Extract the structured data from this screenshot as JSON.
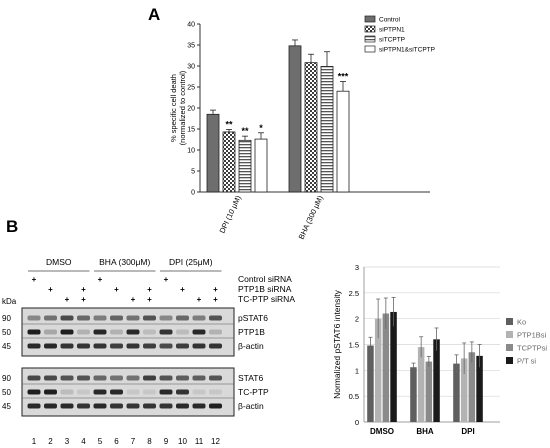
{
  "panels": {
    "a": "A",
    "b": "B"
  },
  "patterns": {
    "solid": "#6e6e6e",
    "check": "#3c3c3c",
    "hstripe": "#555555"
  },
  "chart_data": [
    {
      "type": "bar",
      "ylabel": "% specific cell death\n(normalized to control)",
      "ylabel_lines": [
        "% specific cell death",
        "(normalized to control)"
      ],
      "ylim": [
        0,
        40
      ],
      "yticks": [
        "0",
        "5",
        "10",
        "15",
        "20",
        "25",
        "30",
        "35",
        "40"
      ],
      "categories": [
        "DPI (10 μM)",
        "BHA (300 μM)"
      ],
      "legend_position": "top-right",
      "series": [
        {
          "name": "Control",
          "pattern": "solid",
          "values": [
            18.5,
            34.8
          ],
          "errors": [
            1.0,
            1.4
          ],
          "sig": [
            "",
            ""
          ]
        },
        {
          "name": "siPTPN1",
          "pattern": "check",
          "values": [
            14.3,
            30.8
          ],
          "errors": [
            0.6,
            2.0
          ],
          "sig": [
            "**",
            ""
          ]
        },
        {
          "name": "siTCPTP",
          "pattern": "hstripe",
          "values": [
            12.3,
            29.9
          ],
          "errors": [
            1.0,
            3.5
          ],
          "sig": [
            "**",
            ""
          ]
        },
        {
          "name": "siPTPN1&siTCPTP",
          "pattern": "white",
          "values": [
            12.6,
            24.0
          ],
          "errors": [
            1.5,
            2.3
          ],
          "sig": [
            "*",
            "***"
          ]
        }
      ]
    },
    {
      "type": "bar",
      "ylabel": "Normalized pSTAT6 intensity",
      "ylim": [
        0,
        3
      ],
      "yticks": [
        "0",
        "0.5",
        "1",
        "1.5",
        "2",
        "2.5",
        "3"
      ],
      "categories": [
        "DMSO",
        "BHA",
        "DPI"
      ],
      "legend_position": "right",
      "grid": true,
      "series": [
        {
          "name": "Ko",
          "color": "#5f5f5f",
          "values": [
            1.48,
            1.06,
            1.13
          ],
          "errors": [
            0.16,
            0.08,
            0.17
          ]
        },
        {
          "name": "PTP1Bsi",
          "color": "#b3b3b3",
          "values": [
            2.0,
            1.45,
            1.23
          ],
          "errors": [
            0.38,
            0.2,
            0.3
          ]
        },
        {
          "name": "TCPTPsi",
          "color": "#8a8a8a",
          "values": [
            2.1,
            1.17,
            1.35
          ],
          "errors": [
            0.3,
            0.1,
            0.2
          ]
        },
        {
          "name": "P/T si",
          "color": "#1a1a1a",
          "values": [
            2.13,
            1.6,
            1.28
          ],
          "errors": [
            0.28,
            0.22,
            0.22
          ]
        }
      ]
    }
  ],
  "blot": {
    "treatments": [
      {
        "label": "DMSO"
      },
      {
        "label": "BHA (300μM)"
      },
      {
        "label": "DPI (25μM)"
      }
    ],
    "sirna_rows": [
      {
        "label": "Control siRNA",
        "marks": [
          "+",
          "",
          "",
          "",
          "+",
          "",
          "",
          "",
          "+",
          "",
          "",
          ""
        ]
      },
      {
        "label": "PTP1B siRNA",
        "marks": [
          "",
          "+",
          "",
          "+",
          "",
          "+",
          "",
          "+",
          "",
          "+",
          "",
          "+"
        ]
      },
      {
        "label": "TC-PTP siRNA",
        "marks": [
          "",
          "",
          "+",
          "+",
          "",
          "",
          "+",
          "+",
          "",
          "",
          "+",
          "+"
        ]
      }
    ],
    "kda_label": "kDa",
    "lanes": [
      "1",
      "2",
      "3",
      "4",
      "5",
      "6",
      "7",
      "8",
      "9",
      "10",
      "11",
      "12"
    ],
    "groups": [
      {
        "proteins": [
          "pSTAT6",
          "PTP1B",
          "β-actin"
        ],
        "kda": [
          "90",
          "50",
          "45"
        ],
        "intensities": [
          [
            0.45,
            0.55,
            0.75,
            0.6,
            0.5,
            0.62,
            0.55,
            0.7,
            0.45,
            0.6,
            0.5,
            0.7
          ],
          [
            0.95,
            0.3,
            0.95,
            0.25,
            0.9,
            0.25,
            0.9,
            0.2,
            0.85,
            0.2,
            0.9,
            0.25
          ],
          [
            0.9,
            0.9,
            0.85,
            0.85,
            0.85,
            0.8,
            0.85,
            0.8,
            0.75,
            0.8,
            0.85,
            0.85
          ]
        ]
      },
      {
        "proteins": [
          "STAT6",
          "TC-PTP",
          "β-actin"
        ],
        "kda": [
          "90",
          "50",
          "45"
        ],
        "intensities": [
          [
            0.75,
            0.75,
            0.7,
            0.7,
            0.6,
            0.55,
            0.55,
            0.8,
            0.7,
            0.65,
            0.65,
            0.7
          ],
          [
            0.95,
            0.95,
            0.2,
            0.15,
            0.9,
            0.9,
            0.15,
            0.15,
            0.9,
            0.85,
            0.15,
            0.15
          ],
          [
            0.9,
            0.9,
            0.9,
            0.85,
            0.9,
            0.85,
            0.85,
            0.85,
            0.85,
            0.9,
            0.9,
            0.95
          ]
        ]
      }
    ]
  }
}
